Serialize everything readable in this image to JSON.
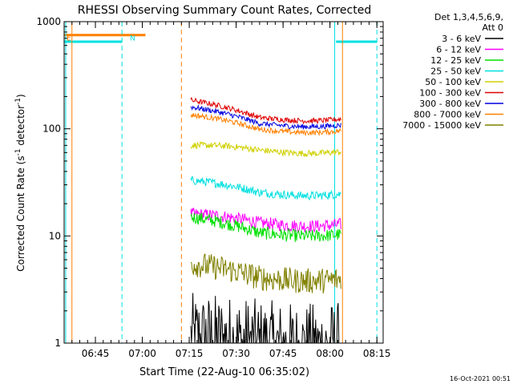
{
  "chart_data": {
    "type": "line",
    "title": "RHESSI Observing Summary Count Rates, Corrected",
    "xlabel": "Start Time (22-Aug-10 06:35:02)",
    "ylabel": "Corrected Count Rate (s",
    "ylabel_sup1": "-1",
    "ylabel_mid": " detector",
    "ylabel_sup2": "-1",
    "ylabel_end": ")",
    "y_scale": "log",
    "ylim": [
      1,
      1000
    ],
    "xlim_minutes": [
      0,
      102
    ],
    "x_ticks": [
      {
        "t": 10,
        "label": "06:45"
      },
      {
        "t": 25,
        "label": "07:00"
      },
      {
        "t": 40,
        "label": "07:15"
      },
      {
        "t": 55,
        "label": "07:30"
      },
      {
        "t": 70,
        "label": "07:45"
      },
      {
        "t": 85,
        "label": "08:00"
      },
      {
        "t": 100,
        "label": "08:15"
      }
    ],
    "y_ticks": [
      {
        "v": 1,
        "label": "1"
      },
      {
        "v": 10,
        "label": "10"
      },
      {
        "v": 100,
        "label": "100"
      },
      {
        "v": 1000,
        "label": "1000"
      }
    ],
    "legend_header": [
      "Det 1,3,4,5,6,9,",
      "Att 0"
    ],
    "legend_position": "top-right",
    "series": [
      {
        "name": "3 - 6 keV",
        "color": "#000000",
        "start": 1.05,
        "end": 0.9,
        "noise": 0.45
      },
      {
        "name": "6 - 12 keV",
        "color": "#ff00ff",
        "start": 16,
        "end": 13,
        "noise": 0.06
      },
      {
        "name": "12 - 25 keV",
        "color": "#00e000",
        "start": 15,
        "end": 10.5,
        "noise": 0.06
      },
      {
        "name": "25 - 50 keV",
        "color": "#00e0e0",
        "start": 33,
        "end": 25,
        "noise": 0.04
      },
      {
        "name": "50 - 100 keV",
        "color": "#d0d000",
        "start": 70,
        "end": 62,
        "noise": 0.03
      },
      {
        "name": "100 - 300 keV",
        "color": "#e00000",
        "start": 185,
        "end": 125,
        "noise": 0.025
      },
      {
        "name": "300 - 800 keV",
        "color": "#0000e0",
        "start": 160,
        "end": 110,
        "noise": 0.025
      },
      {
        "name": "800 - 7000 keV",
        "color": "#ff8000",
        "start": 135,
        "end": 97,
        "noise": 0.025
      },
      {
        "name": "7000 - 15000 keV",
        "color": "#808000",
        "start": 5.5,
        "end": 4,
        "noise": 0.12
      }
    ],
    "data_window_minutes": [
      40.5,
      88.5
    ],
    "night_intervals_minutes": [
      [
        0,
        26
      ],
      [
        90,
        102
      ]
    ],
    "saa_vertical_lines_minutes": {
      "cyan_solid": [
        0.5,
        86.5
      ],
      "cyan_dashed": [
        18.5,
        100
      ],
      "orange_solid": [
        2.5,
        89
      ],
      "orange_dashed": [
        37.5
      ]
    },
    "top_flags": [
      {
        "letter": "E",
        "t": 0.3,
        "color": "#ff8000"
      },
      {
        "letter": "N",
        "t": 20.5,
        "color": "#00e0e0"
      }
    ],
    "top_bar_levels": {
      "orange_bar": 750,
      "cyan_bar": 650
    }
  },
  "footer_stamp": "16-Oct-2021 00:51"
}
